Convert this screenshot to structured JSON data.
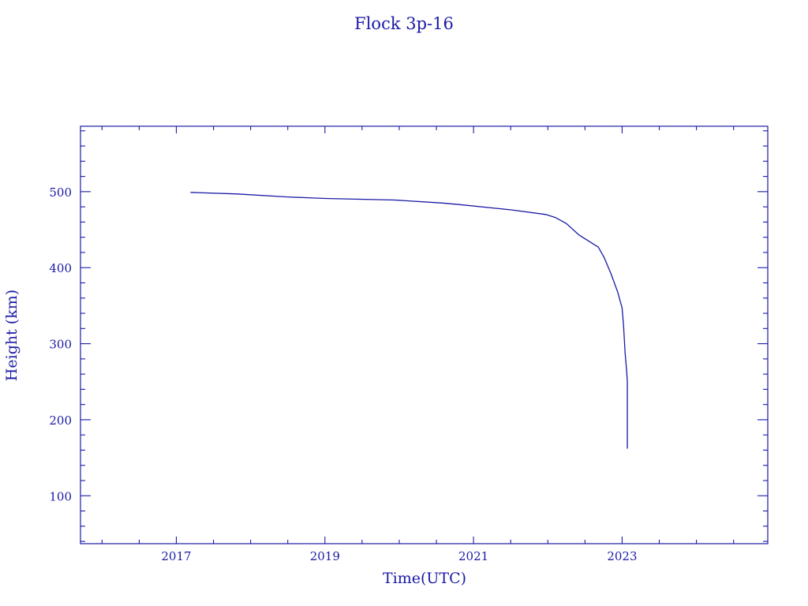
{
  "chart_data": {
    "type": "line",
    "title": "Flock 3p-16",
    "xlabel": "Time(UTC)",
    "ylabel": "Height (km)",
    "xlim": [
      2015.71,
      2024.96
    ],
    "ylim": [
      37,
      586
    ],
    "x_ticks": [
      2017,
      2019,
      2021,
      2023
    ],
    "x_tick_labels": [
      "2017",
      "2019",
      "2021",
      "2023"
    ],
    "x_minor_step": 0.5,
    "y_ticks": [
      100,
      200,
      300,
      400,
      500
    ],
    "y_tick_labels": [
      "100",
      "200",
      "300",
      "400",
      "500"
    ],
    "y_minor_step": 20,
    "grid": false,
    "color": "#1a1aa6",
    "series": [
      {
        "x": [
          2017.19,
          2017.82,
          2018.5,
          2019.0,
          2019.94,
          2020.58,
          2020.8,
          2021.51,
          2021.97,
          2022.1,
          2022.25,
          2022.42,
          2022.68,
          2022.76,
          2022.85,
          2022.94,
          2023.0,
          2023.02,
          2023.04,
          2023.06,
          2023.07,
          2023.07
        ],
        "y": [
          499,
          497,
          493,
          491,
          489,
          485,
          483,
          476,
          470,
          466,
          458,
          443,
          427,
          413,
          392,
          368,
          347,
          323,
          288,
          265,
          251,
          162
        ]
      }
    ]
  }
}
